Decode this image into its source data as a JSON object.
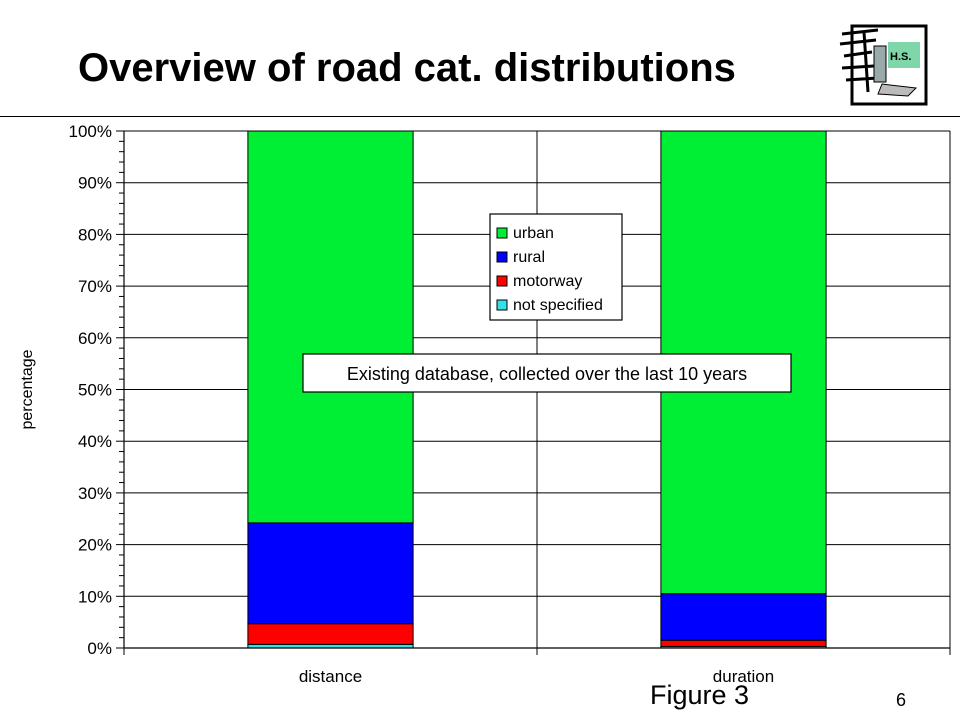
{
  "slide": {
    "title": "Overview of road cat. distributions",
    "figure_label": "Figure 3",
    "page_number": "6",
    "logo_text": "H.S.",
    "callout": "Existing database, collected over the last 10 years"
  },
  "colors": {
    "urban": "#00ee33",
    "rural": "#0000ff",
    "motorway": "#ff0000",
    "not_specified": "#33e0e8"
  },
  "chart_data": {
    "type": "bar",
    "stacked": true,
    "categories": [
      "distance",
      "duration"
    ],
    "series": [
      {
        "name": "not specified",
        "values": [
          0.7,
          0.3
        ]
      },
      {
        "name": "motorway",
        "values": [
          4.0,
          1.2
        ]
      },
      {
        "name": "rural",
        "values": [
          19.5,
          9.0
        ]
      },
      {
        "name": "urban",
        "values": [
          75.8,
          89.5
        ]
      }
    ],
    "ylabel": "percentage",
    "xlabel": "",
    "ylim": [
      0,
      100
    ],
    "yticks": [
      "0%",
      "10%",
      "20%",
      "30%",
      "40%",
      "50%",
      "60%",
      "70%",
      "80%",
      "90%",
      "100%"
    ],
    "grid": true,
    "legend_position": "center-top"
  }
}
